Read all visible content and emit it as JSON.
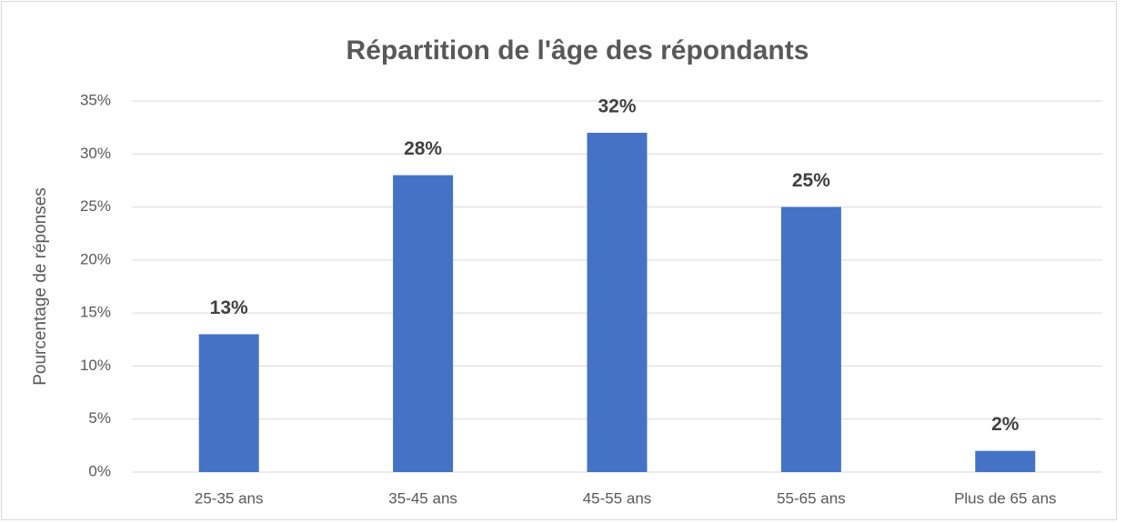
{
  "chart_data": {
    "type": "bar",
    "title": "Répartition de l'âge des répondants",
    "y_label": "Pourcentage de réponses",
    "categories": [
      "25-35 ans",
      "35-45 ans",
      "45-55 ans",
      "55-65 ans",
      "Plus de 65 ans"
    ],
    "values": [
      13,
      28,
      32,
      25,
      2
    ],
    "value_labels": [
      "13%",
      "28%",
      "32%",
      "25%",
      "2%"
    ],
    "color": "#4472c4",
    "ylim": [
      0,
      35
    ],
    "yticks": [
      {
        "value": 0,
        "label": "0%"
      },
      {
        "value": 5,
        "label": "5%"
      },
      {
        "value": 10,
        "label": "10%"
      },
      {
        "value": 15,
        "label": "15%"
      },
      {
        "value": 20,
        "label": "20%"
      },
      {
        "value": 25,
        "label": "25%"
      },
      {
        "value": 30,
        "label": "30%"
      },
      {
        "value": 35,
        "label": "35%"
      }
    ],
    "grid": true
  }
}
